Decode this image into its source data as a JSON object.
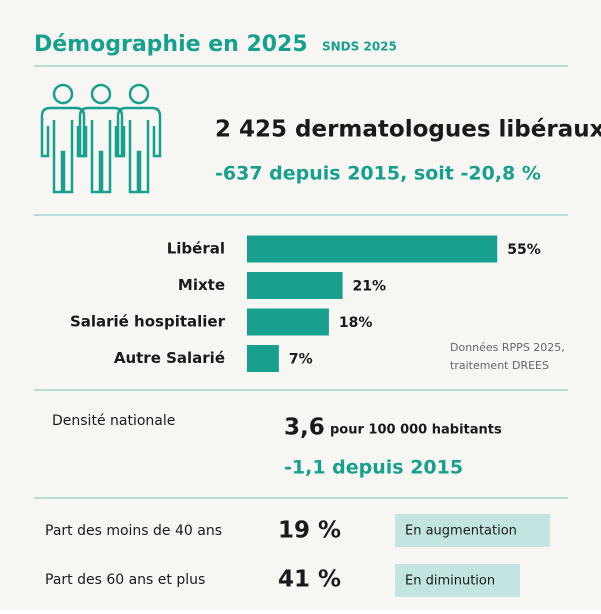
{
  "header": {
    "title": "Démographie en 2025",
    "source": "SNDS 2025"
  },
  "summary": {
    "headline": "2 425 dermatologues libéraux",
    "change": "-637 depuis 2015, soit -20,8 %"
  },
  "chart_data": {
    "type": "bar",
    "orientation": "horizontal",
    "color": "#17a08e",
    "categories": [
      "Libéral",
      "Mixte",
      "Salarié hospitalier",
      "Autre Salarié"
    ],
    "values": [
      55,
      21,
      18,
      7
    ],
    "value_labels": [
      "55%",
      "21%",
      "18%",
      "7%"
    ],
    "note": [
      "Données RPPS 2025,",
      "traitement DREES"
    ]
  },
  "density": {
    "label": "Densité nationale",
    "value": "3,6",
    "unit": "pour 100 000 habitants",
    "change": "-1,1 depuis 2015"
  },
  "age": {
    "rows": [
      {
        "label": "Part des moins de 40 ans",
        "value": "19 %",
        "trend": "En augmentation"
      },
      {
        "label": "Part des 60 ans et plus",
        "value": "41 %",
        "trend": "En diminution"
      }
    ]
  }
}
